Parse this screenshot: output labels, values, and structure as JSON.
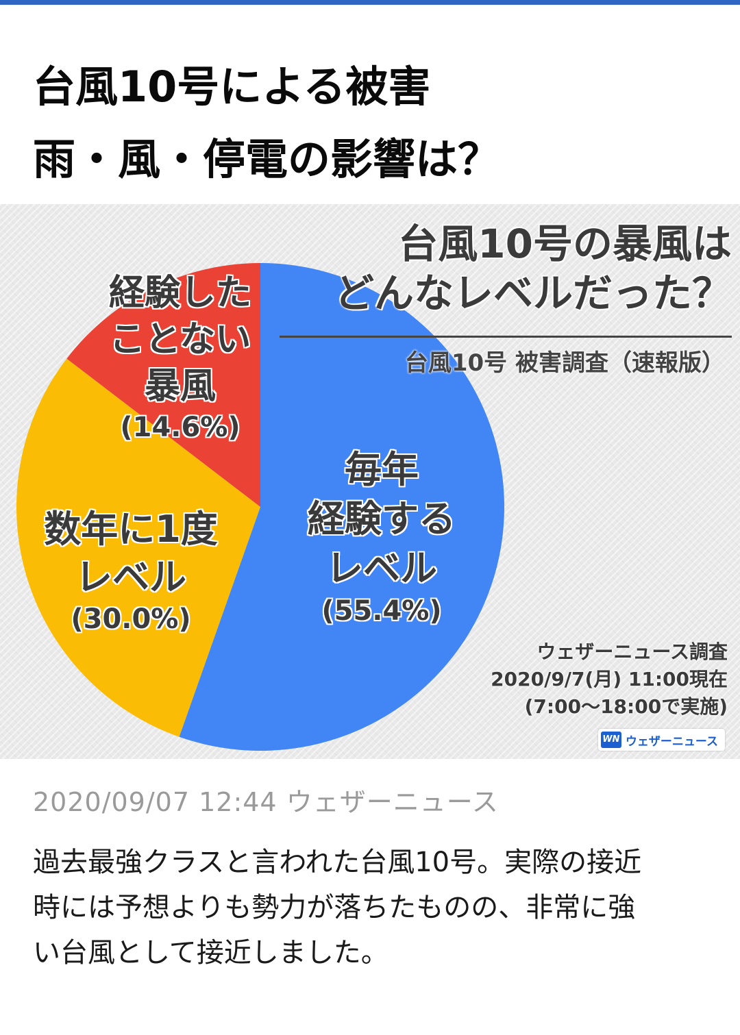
{
  "header": {
    "title_line1": "台風10号による被害",
    "title_line2": "雨・風・停電の影響は？"
  },
  "chart_data": {
    "type": "pie",
    "title_line1": "台風10号の暴風は",
    "title_line2": "どんなレベルだった？",
    "subtitle": "台風10号 被害調査（速報版）",
    "slices": [
      {
        "label_lines": [
          "毎年",
          "経験する",
          "レベル"
        ],
        "value": 55.4,
        "value_text": "(55.4%)",
        "color": "#4285f4"
      },
      {
        "label_lines": [
          "数年に1度",
          "レベル"
        ],
        "value": 30.0,
        "value_text": "(30.0%)",
        "color": "#fbbc05"
      },
      {
        "label_lines": [
          "経験した",
          "ことない",
          "暴風"
        ],
        "value": 14.6,
        "value_text": "(14.6%)",
        "color": "#ea4335"
      }
    ],
    "source_lines": [
      "ウェザーニュース調査",
      "2020/9/7(月) 11:00現在",
      "(7:00〜18:00で実施)"
    ],
    "logo_mark": "WN",
    "logo_text": "ウェザーニュース"
  },
  "article": {
    "byline": "2020/09/07  12:44  ウェザーニュース",
    "body_lines": [
      "過去最強クラスと言われた台風10号。実際の接近",
      "時には予想よりも勢力が落ちたものの、非常に強",
      "い台風として接近しました。"
    ]
  },
  "colors": {
    "accent_bar": "#2f66c4",
    "background": "#ffffff"
  }
}
